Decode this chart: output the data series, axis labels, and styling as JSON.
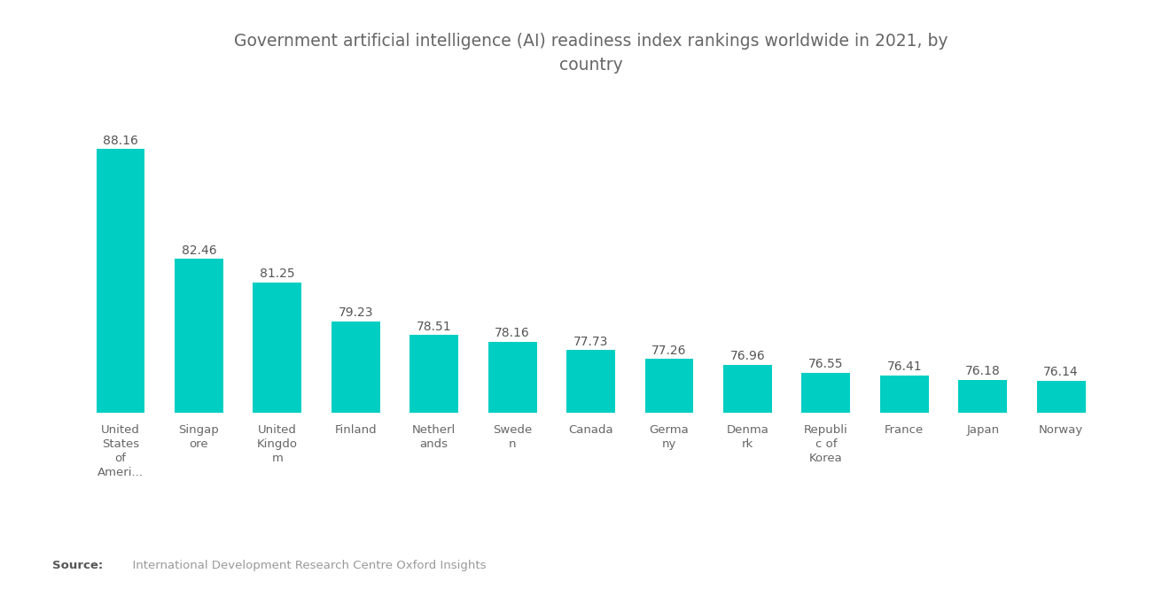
{
  "title": "Government artificial intelligence (AI) readiness index rankings worldwide in 2021, by\ncountry",
  "categories": [
    "United\nStates\nof\nAmeri...",
    "Singap\nore",
    "United\nKingdo\nm",
    "Finland",
    "Netherl\nands",
    "Swede\nn",
    "Canada",
    "Germa\nny",
    "Denma\nrk",
    "Republi\nc of\nKorea",
    "France",
    "Japan",
    "Norway"
  ],
  "values": [
    88.16,
    82.46,
    81.25,
    79.23,
    78.51,
    78.16,
    77.73,
    77.26,
    76.96,
    76.55,
    76.41,
    76.18,
    76.14
  ],
  "bar_color": "#00CEC2",
  "background_color": "#ffffff",
  "title_color": "#666666",
  "label_color": "#666666",
  "value_color": "#555555",
  "source_bold": "Source:",
  "source_text": "  International Development Research Centre Oxford Insights",
  "ylim_min": 74.5,
  "ylim_max": 91.0
}
